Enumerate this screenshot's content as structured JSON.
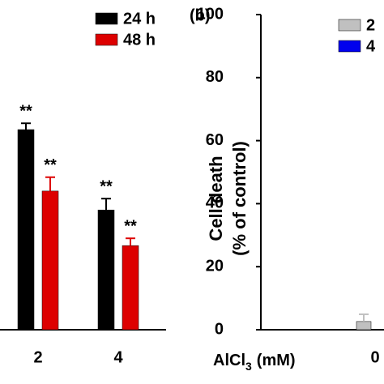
{
  "chart_data": [
    {
      "type": "bar",
      "categories": [
        "2",
        "4"
      ],
      "series": [
        {
          "name": "24 h",
          "color": "#000000",
          "values": [
            63.5,
            38
          ],
          "errors": [
            2,
            3.6
          ],
          "annotations": [
            "**",
            "**"
          ]
        },
        {
          "name": "48 h",
          "color": "#dd0000",
          "values": [
            44,
            26.7
          ],
          "errors": [
            4.4,
            2.3
          ],
          "annotations": [
            "**",
            "**"
          ]
        }
      ],
      "ylim": [
        0,
        100
      ]
    },
    {
      "type": "bar",
      "panel_label": "(b)",
      "y_label": [
        "Cell death",
        "(% of control)"
      ],
      "x_label": "AlCl",
      "x_label_sub": "3",
      "x_label_unit": "(mM)",
      "categories": [
        "0"
      ],
      "series": [
        {
          "name": "2",
          "color": "#c0c0c0",
          "values": [
            2.6
          ],
          "errors": [
            2.3
          ]
        },
        {
          "name": "4",
          "color": "#0000ee",
          "values": [
            null
          ]
        }
      ],
      "ylim": [
        0,
        100
      ],
      "yticks": [
        0,
        20,
        40,
        60,
        80,
        100
      ]
    }
  ]
}
